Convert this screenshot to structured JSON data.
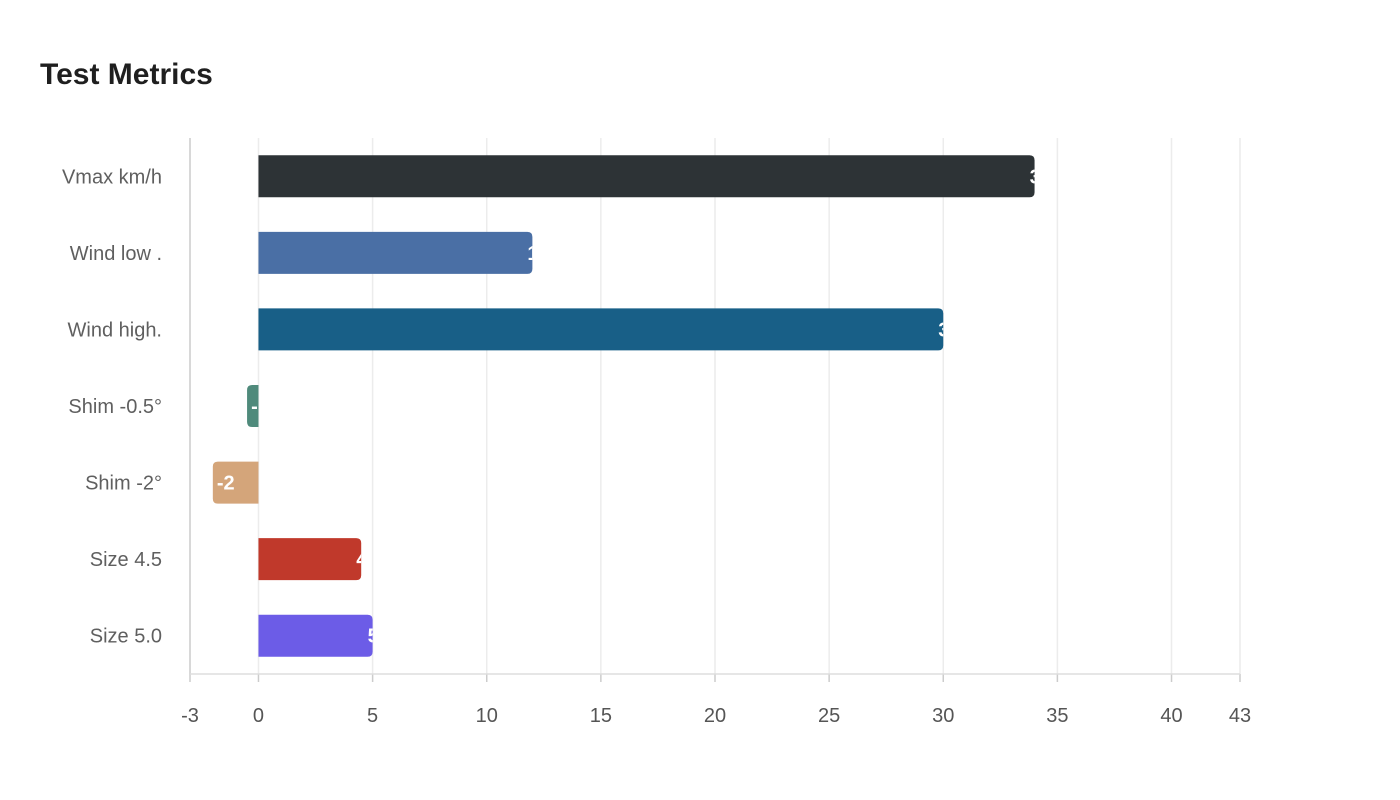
{
  "chart_data": {
    "type": "bar",
    "orientation": "horizontal",
    "title": "Test Metrics",
    "xlabel": "",
    "ylabel": "",
    "xlim": [
      -3,
      43
    ],
    "x_ticks": [
      -3,
      0,
      5,
      10,
      15,
      20,
      25,
      30,
      35,
      40,
      43
    ],
    "grid": "vertical",
    "legend": "none",
    "categories": [
      "Vmax km/h",
      "Wind low .",
      "Wind high.",
      "Shim -0.5°",
      "Shim -2°",
      "Size 4.5",
      "Size 5.0"
    ],
    "values": [
      34,
      12,
      30,
      -0.5,
      -2,
      4.5,
      5
    ],
    "colors": [
      "#2d3336",
      "#4a6fa5",
      "#185f87",
      "#4f8a7b",
      "#d4a57a",
      "#c0392b",
      "#6c5ce7"
    ]
  }
}
